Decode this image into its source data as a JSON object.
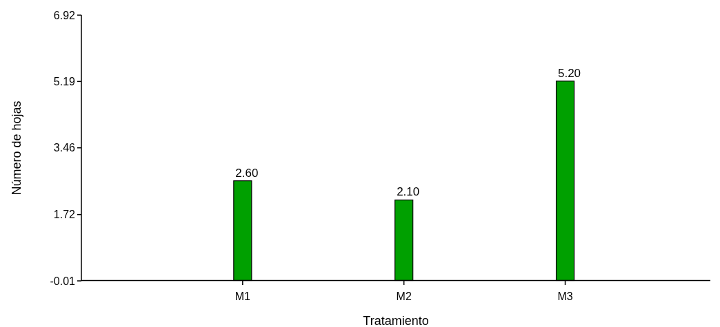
{
  "chart_data": {
    "type": "bar",
    "xlabel": "Tratamiento",
    "ylabel": "Número de hojas",
    "categories": [
      "M1",
      "M2",
      "M3"
    ],
    "values": [
      2.6,
      2.1,
      5.2
    ],
    "color": "#00a000",
    "value_labels": [
      "2.60",
      "2.10",
      "5.20"
    ],
    "ylim": [
      -0.01,
      6.92
    ],
    "yticks": [
      -0.01,
      1.72,
      3.46,
      5.19,
      6.92
    ]
  }
}
